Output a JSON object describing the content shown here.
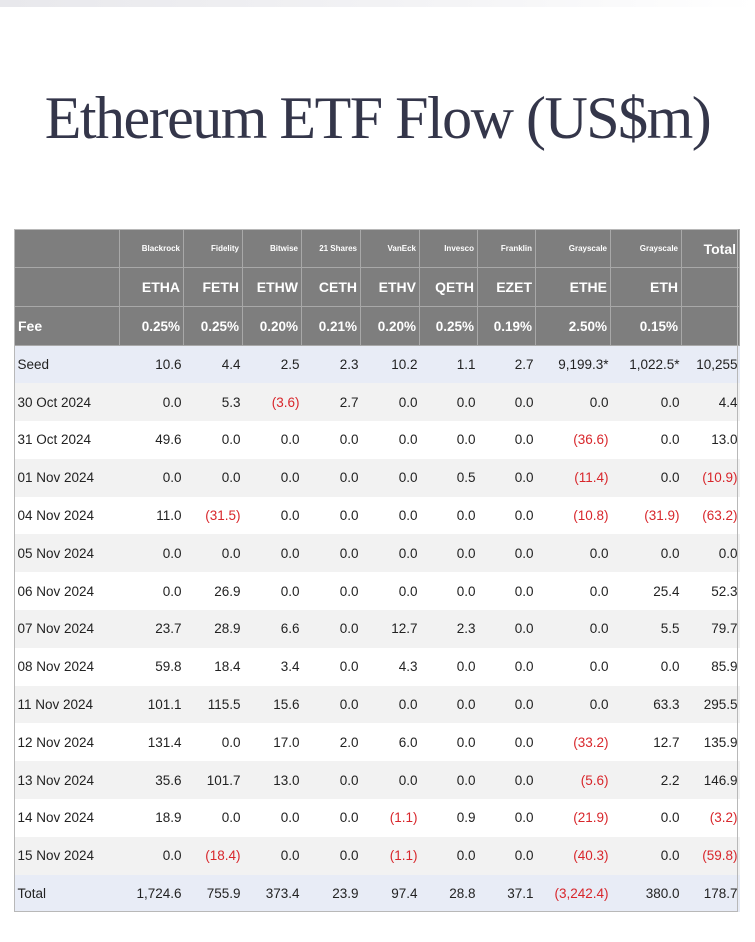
{
  "title": "Ethereum ETF Flow (US$m)",
  "header": {
    "issuers": [
      "Blackrock",
      "Fidelity",
      "Bitwise",
      "21 Shares",
      "VanEck",
      "Invesco",
      "Franklin",
      "Grayscale",
      "Grayscale"
    ],
    "total_label": "Total",
    "tickers": [
      "ETHA",
      "FETH",
      "ETHW",
      "CETH",
      "ETHV",
      "QETH",
      "EZET",
      "ETHE",
      "ETH"
    ],
    "fee_label": "Fee",
    "fees": [
      "0.25%",
      "0.25%",
      "0.20%",
      "0.21%",
      "0.20%",
      "0.25%",
      "0.19%",
      "2.50%",
      "0.15%"
    ]
  },
  "rows": [
    {
      "label": "Seed",
      "cells": [
        "10.6",
        "4.4",
        "2.5",
        "2.3",
        "10.2",
        "1.1",
        "2.7",
        "9,199.3*",
        "1,022.5*",
        "10,255"
      ]
    },
    {
      "label": "30 Oct 2024",
      "cells": [
        "0.0",
        "5.3",
        "(3.6)",
        "2.7",
        "0.0",
        "0.0",
        "0.0",
        "0.0",
        "0.0",
        "4.4"
      ]
    },
    {
      "label": "31 Oct 2024",
      "cells": [
        "49.6",
        "0.0",
        "0.0",
        "0.0",
        "0.0",
        "0.0",
        "0.0",
        "(36.6)",
        "0.0",
        "13.0"
      ]
    },
    {
      "label": "01 Nov 2024",
      "cells": [
        "0.0",
        "0.0",
        "0.0",
        "0.0",
        "0.0",
        "0.5",
        "0.0",
        "(11.4)",
        "0.0",
        "(10.9)"
      ]
    },
    {
      "label": "04 Nov 2024",
      "cells": [
        "11.0",
        "(31.5)",
        "0.0",
        "0.0",
        "0.0",
        "0.0",
        "0.0",
        "(10.8)",
        "(31.9)",
        "(63.2)"
      ]
    },
    {
      "label": "05 Nov 2024",
      "cells": [
        "0.0",
        "0.0",
        "0.0",
        "0.0",
        "0.0",
        "0.0",
        "0.0",
        "0.0",
        "0.0",
        "0.0"
      ]
    },
    {
      "label": "06 Nov 2024",
      "cells": [
        "0.0",
        "26.9",
        "0.0",
        "0.0",
        "0.0",
        "0.0",
        "0.0",
        "0.0",
        "25.4",
        "52.3"
      ]
    },
    {
      "label": "07 Nov 2024",
      "cells": [
        "23.7",
        "28.9",
        "6.6",
        "0.0",
        "12.7",
        "2.3",
        "0.0",
        "0.0",
        "5.5",
        "79.7"
      ]
    },
    {
      "label": "08 Nov 2024",
      "cells": [
        "59.8",
        "18.4",
        "3.4",
        "0.0",
        "4.3",
        "0.0",
        "0.0",
        "0.0",
        "0.0",
        "85.9"
      ]
    },
    {
      "label": "11 Nov 2024",
      "cells": [
        "101.1",
        "115.5",
        "15.6",
        "0.0",
        "0.0",
        "0.0",
        "0.0",
        "0.0",
        "63.3",
        "295.5"
      ]
    },
    {
      "label": "12 Nov 2024",
      "cells": [
        "131.4",
        "0.0",
        "17.0",
        "2.0",
        "6.0",
        "0.0",
        "0.0",
        "(33.2)",
        "12.7",
        "135.9"
      ]
    },
    {
      "label": "13 Nov 2024",
      "cells": [
        "35.6",
        "101.7",
        "13.0",
        "0.0",
        "0.0",
        "0.0",
        "0.0",
        "(5.6)",
        "2.2",
        "146.9"
      ]
    },
    {
      "label": "14 Nov 2024",
      "cells": [
        "18.9",
        "0.0",
        "0.0",
        "0.0",
        "(1.1)",
        "0.9",
        "0.0",
        "(21.9)",
        "0.0",
        "(3.2)"
      ]
    },
    {
      "label": "15 Nov 2024",
      "cells": [
        "0.0",
        "(18.4)",
        "0.0",
        "0.0",
        "(1.1)",
        "0.0",
        "0.0",
        "(40.3)",
        "0.0",
        "(59.8)"
      ]
    },
    {
      "label": "Total",
      "cells": [
        "1,724.6",
        "755.9",
        "373.4",
        "23.9",
        "97.4",
        "28.8",
        "37.1",
        "(3,242.4)",
        "380.0",
        "178.7"
      ]
    }
  ],
  "colors": {
    "header_bg": "#7e7e7e",
    "negative": "#d8262b",
    "highlight_row": "#e8ecf6",
    "title": "#34364a"
  }
}
